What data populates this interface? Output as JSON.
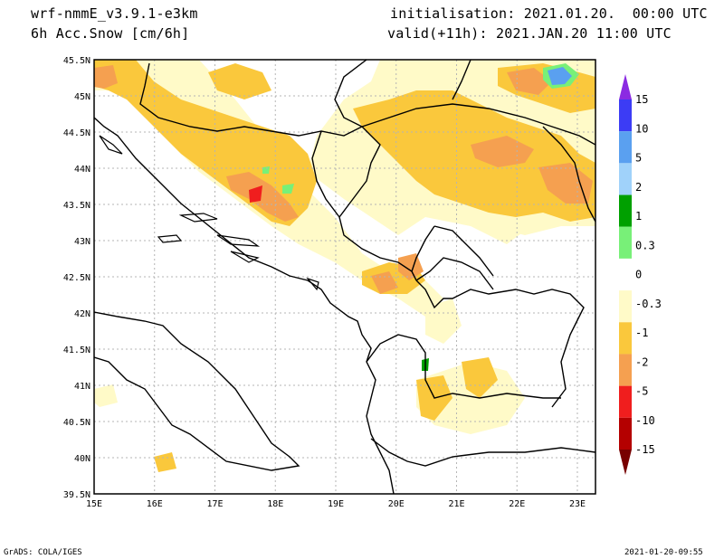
{
  "header": {
    "model": "wrf-nmmE_v3.9.1-e3km",
    "field": "6h Acc.Snow [cm/6h]",
    "init": "initialisation: 2021.01.20.  00:00 UTC",
    "valid": "valid(+11h): 2021.JAN.20 11:00 UTC"
  },
  "map": {
    "lat_labels": [
      "45.5N",
      "45N",
      "44.5N",
      "44N",
      "43.5N",
      "43N",
      "42.5N",
      "42N",
      "41.5N",
      "41N",
      "40.5N",
      "40N",
      "39.5N"
    ],
    "lon_labels": [
      "15E",
      "16E",
      "17E",
      "18E",
      "19E",
      "20E",
      "21E",
      "22E",
      "23E"
    ],
    "lat_range": [
      39.5,
      45.5
    ],
    "lon_range": [
      15.0,
      23.3
    ],
    "grid": true
  },
  "colorbar": {
    "labels": [
      "15",
      "10",
      "5",
      "2",
      "1",
      "0.3",
      "0",
      "-0.3",
      "-1",
      "-2",
      "-5",
      "-10",
      "-15"
    ],
    "colors": [
      "#8b2be2",
      "#3c3cf5",
      "#5aa0f0",
      "#a0d2fa",
      "#00a000",
      "#78f078",
      "#ffffff",
      "#fffac8",
      "#fac83c",
      "#f5a050",
      "#f01e1e",
      "#b40000",
      "#780000"
    ]
  },
  "footer": {
    "left": "GrADS: COLA/IGES",
    "right": "2021-01-20-09:55"
  }
}
